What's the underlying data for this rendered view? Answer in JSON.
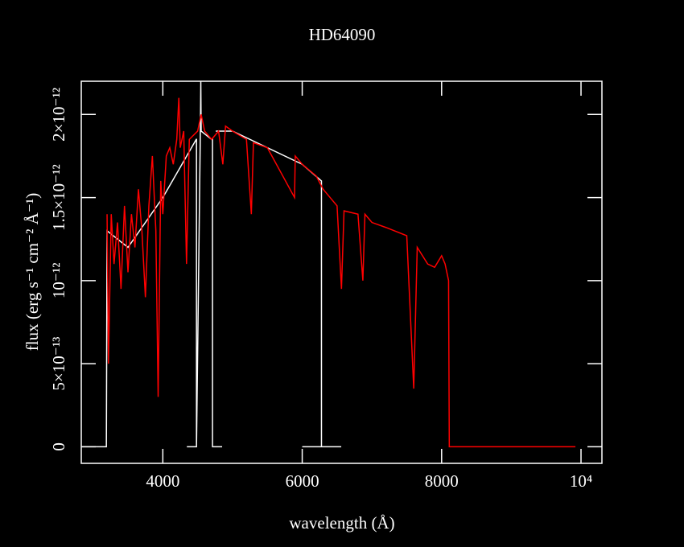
{
  "chart_data": {
    "type": "line",
    "title": "HD64090",
    "xlabel": "wavelength (Å)",
    "ylabel": "flux (erg s⁻¹ cm⁻² Å⁻¹)",
    "xlim": [
      2830,
      10300
    ],
    "ylim": [
      -1e-13,
      2.2e-12
    ],
    "xticks": [
      4000,
      6000,
      8000,
      {
        "value": 10000,
        "label": "10⁴"
      }
    ],
    "yticks": [
      0,
      {
        "value": 5e-13,
        "label": "5×10⁻¹³"
      },
      {
        "value": 1e-12,
        "label": "10⁻¹²"
      },
      {
        "value": 1.5e-12,
        "label": "1.5×10⁻¹²"
      },
      {
        "value": 2e-12,
        "label": "2×10⁻¹²"
      }
    ],
    "series": [
      {
        "color": "#ffffff",
        "x": [
          2840,
          3190,
          3200,
          3500,
          4000,
          4480,
          4483,
          4483,
          4345,
          null,
          4483,
          4540,
          4545,
          4550,
          4700,
          4713,
          4713,
          4851,
          null,
          4760,
          5000,
          6000,
          6276,
          6276,
          6000,
          null,
          6276,
          6560
        ],
        "values": [
          0,
          0,
          1.3e-12,
          1.2e-12,
          1.5e-12,
          1.85e-12,
          1.85e-12,
          0,
          0,
          null,
          0,
          1.95e-12,
          2.2e-12,
          1.9e-12,
          1.85e-12,
          1.85e-12,
          0,
          0,
          null,
          1.9e-12,
          1.9e-12,
          1.7e-12,
          1.6e-12,
          0,
          0,
          null,
          0,
          0
        ]
      },
      {
        "color": "#ff0000",
        "x": [
          3200,
          3220,
          3260,
          3300,
          3350,
          3400,
          3450,
          3500,
          3550,
          3600,
          3650,
          3700,
          3750,
          3800,
          3850,
          3900,
          3933,
          3970,
          4000,
          4050,
          4100,
          4150,
          4200,
          4230,
          4250,
          4300,
          4340,
          4380,
          4500,
          4550,
          4600,
          4700,
          4800,
          4861,
          4900,
          5000,
          5200,
          5270,
          5300,
          5500,
          5890,
          5900,
          6000,
          6200,
          6300,
          6400,
          6500,
          6563,
          6600,
          6800,
          6870,
          6900,
          7000,
          7200,
          7500,
          7600,
          7650,
          7800,
          7900,
          8000,
          8050,
          8100,
          8110,
          9920
        ],
        "values": [
          1.4e-12,
          5e-13,
          1.4e-12,
          1.1e-12,
          1.35e-12,
          9.5e-13,
          1.45e-12,
          1.05e-12,
          1.4e-12,
          1.2e-12,
          1.55e-12,
          1.3e-12,
          9e-13,
          1.45e-12,
          1.75e-12,
          1.3e-12,
          3e-13,
          1.6e-12,
          1.4e-12,
          1.75e-12,
          1.8e-12,
          1.7e-12,
          1.85e-12,
          2.1e-12,
          1.8e-12,
          1.9e-12,
          1.1e-12,
          1.85e-12,
          1.9e-12,
          2e-12,
          1.9e-12,
          1.85e-12,
          1.9e-12,
          1.7e-12,
          1.93e-12,
          1.9e-12,
          1.85e-12,
          1.4e-12,
          1.83e-12,
          1.8e-12,
          1.5e-12,
          1.75e-12,
          1.7e-12,
          1.63e-12,
          1.55e-12,
          1.5e-12,
          1.45e-12,
          9.5e-13,
          1.42e-12,
          1.4e-12,
          1e-12,
          1.4e-12,
          1.35e-12,
          1.32e-12,
          1.27e-12,
          3.5e-13,
          1.2e-12,
          1.1e-12,
          1.08e-12,
          1.15e-12,
          1.1e-12,
          1e-12,
          0,
          0
        ]
      }
    ]
  }
}
